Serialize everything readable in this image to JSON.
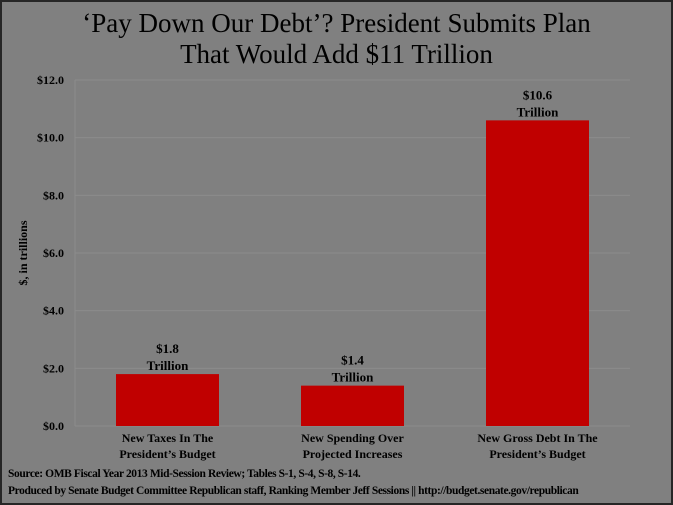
{
  "chart_data": {
    "type": "bar",
    "title_lines": [
      "‘Pay Down Our Debt’? President Submits Plan",
      "That Would Add $11 Trillion"
    ],
    "ylabel": "$, in trillions",
    "ylim": [
      0,
      12
    ],
    "yticks": [
      0,
      2,
      4,
      6,
      8,
      10,
      12
    ],
    "ytick_labels": [
      "$0.0",
      "$2.0",
      "$4.0",
      "$6.0",
      "$8.0",
      "$10.0",
      "$12.0"
    ],
    "grid": true,
    "categories": [
      [
        "New Taxes In The",
        "President’s Budget"
      ],
      [
        "New Spending Over",
        "Projected Increases"
      ],
      [
        "New Gross Debt In The",
        "President’s Budget"
      ]
    ],
    "values": [
      1.8,
      1.4,
      10.6
    ],
    "data_labels": [
      [
        "$1.8",
        "Trillion"
      ],
      [
        "$1.4",
        "Trillion"
      ],
      [
        "$10.6",
        "Trillion"
      ]
    ],
    "bar_color": "#c00000"
  },
  "footer": {
    "source": "Source: OMB Fiscal Year 2013 Mid-Session Review; Tables S-1, S-4, S-8, S-14.",
    "produced_by": "Produced by Senate Budget Committee Republican staff, Ranking Member Jeff Sessions || http://budget.senate.gov/republican"
  }
}
